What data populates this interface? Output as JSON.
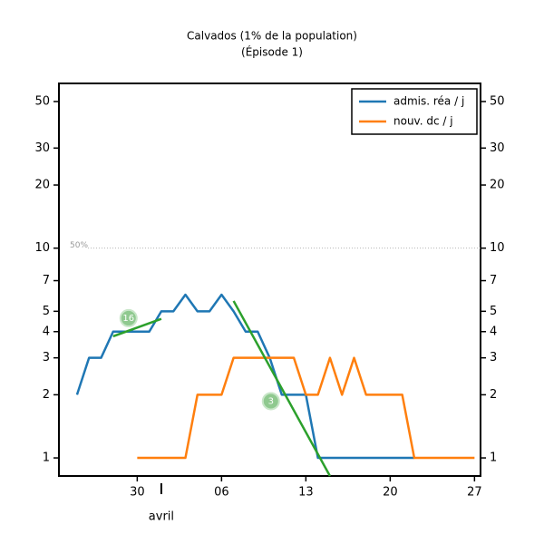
{
  "chart_data": {
    "type": "line",
    "title": "Calvados (1% de la population)",
    "subtitle": "(Épisode 1)",
    "categories": [
      "03-24",
      "03-25",
      "03-26",
      "03-27",
      "03-28",
      "03-29",
      "03-30",
      "03-31",
      "04-01",
      "04-02",
      "04-03",
      "04-04",
      "04-05",
      "04-06",
      "04-07",
      "04-08",
      "04-09",
      "04-10",
      "04-11",
      "04-12",
      "04-13",
      "04-14",
      "04-15",
      "04-16",
      "04-17",
      "04-18",
      "04-19",
      "04-20",
      "04-21",
      "04-22",
      "04-23",
      "04-24",
      "04-25",
      "04-26",
      "04-27"
    ],
    "xticks": [
      {
        "value": "03-30",
        "label": "30"
      },
      {
        "value": "04-06",
        "label": "06"
      },
      {
        "value": "04-13",
        "label": "13"
      },
      {
        "value": "04-20",
        "label": "20"
      },
      {
        "value": "04-27",
        "label": "27"
      }
    ],
    "month_label": {
      "value": "04-01",
      "label": "avril"
    },
    "log_scale": true,
    "ylim": [
      0.82,
      61
    ],
    "yticks": [
      1,
      2,
      3,
      4,
      5,
      7,
      10,
      20,
      30,
      50
    ],
    "series": [
      {
        "name": "admis. réa / j",
        "color": "#1f77b4",
        "values": [
          null,
          2,
          3,
          3,
          4,
          4,
          4,
          4,
          5,
          5,
          6,
          5,
          5,
          6,
          5,
          4,
          4,
          3,
          2,
          2,
          2,
          1,
          1,
          1,
          1,
          1,
          1,
          1,
          1,
          1,
          null,
          null,
          null,
          null,
          null
        ]
      },
      {
        "name": "nouv. dc / j",
        "color": "#ff7f0e",
        "values": [
          null,
          null,
          null,
          null,
          null,
          null,
          1,
          1,
          1,
          1,
          1,
          2,
          2,
          2,
          3,
          3,
          3,
          3,
          3,
          3,
          2,
          2,
          3,
          2,
          3,
          2,
          2,
          2,
          2,
          1,
          1,
          1,
          1,
          1,
          1
        ]
      }
    ],
    "trends": [
      {
        "label": "16",
        "color": "#2ca02c",
        "x": [
          "03-28",
          "04-01"
        ],
        "values": [
          3.8,
          4.6
        ]
      },
      {
        "label": "3",
        "color": "#2ca02c",
        "x": [
          "04-07",
          "04-15"
        ],
        "values": [
          5.6,
          0.82
        ]
      }
    ],
    "reference_line": {
      "value": 10,
      "label": "50%"
    },
    "legend": "upper right"
  }
}
